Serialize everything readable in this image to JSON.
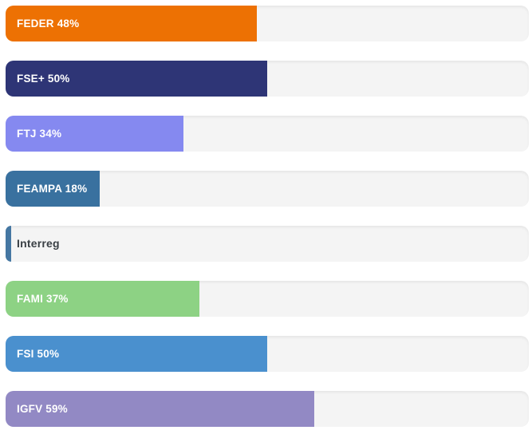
{
  "page": {
    "background": "#ffffff",
    "track_color": "#f4f4f4"
  },
  "chart_data": {
    "type": "bar",
    "orientation": "horizontal",
    "title": "",
    "xlabel": "",
    "ylabel": "",
    "xlim": [
      0,
      100
    ],
    "grid": false,
    "legend": false,
    "categories": [
      "FEDER",
      "FSE+",
      "FTJ",
      "FEAMPA",
      "Interreg",
      "FAMI",
      "FSI",
      "IGFV"
    ],
    "values": [
      48,
      50,
      34,
      18,
      1,
      37,
      50,
      59
    ],
    "track_color": "#f4f4f4",
    "bars": [
      {
        "label": "FEDER 48%",
        "category": "FEDER",
        "value": 48,
        "color": "#ED7103",
        "label_color": "#ffffff"
      },
      {
        "label": "FSE+ 50%",
        "category": "FSE+",
        "value": 50,
        "color": "#2E3576",
        "label_color": "#ffffff"
      },
      {
        "label": "FTJ 34%",
        "category": "FTJ",
        "value": 34,
        "color": "#8589F0",
        "label_color": "#ffffff"
      },
      {
        "label": "FEAMPA 18%",
        "category": "FEAMPA",
        "value": 18,
        "color": "#39719F",
        "label_color": "#ffffff"
      },
      {
        "label": "Interreg",
        "category": "Interreg",
        "value": 1,
        "color": "#4577A2",
        "label_color": "#3A4045"
      },
      {
        "label": "FAMI 37%",
        "category": "FAMI",
        "value": 37,
        "color": "#8DD284",
        "label_color": "#ffffff"
      },
      {
        "label": "FSI 50%",
        "category": "FSI",
        "value": 50,
        "color": "#4A90CE",
        "label_color": "#ffffff"
      },
      {
        "label": "IGFV 59%",
        "category": "IGFV",
        "value": 59,
        "color": "#9289C4",
        "label_color": "#ffffff"
      }
    ]
  }
}
